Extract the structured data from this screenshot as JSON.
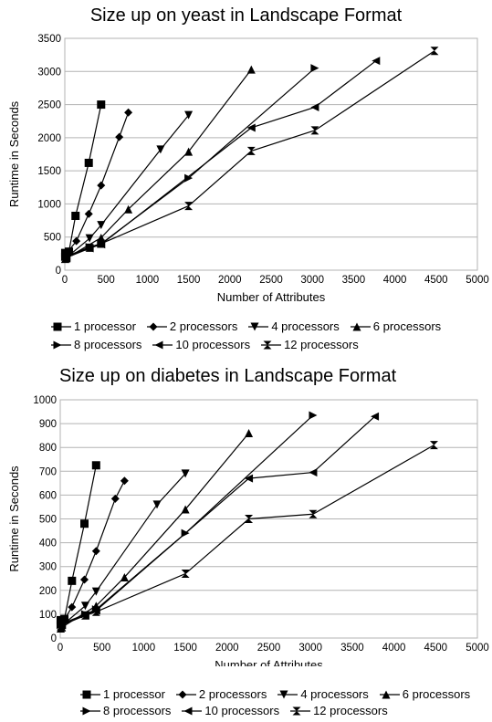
{
  "chart_data": [
    {
      "type": "line",
      "title": "Size up on yeast in Landscape Format",
      "xlabel": "Number of Attributes",
      "ylabel": "Runtime in Seconds",
      "xlim": [
        0,
        5000
      ],
      "ylim": [
        0,
        3500
      ],
      "xticks": [
        0,
        500,
        1000,
        1500,
        2000,
        2500,
        3000,
        3500,
        4000,
        4500,
        5000
      ],
      "yticks": [
        0,
        500,
        1000,
        1500,
        2000,
        2500,
        3000,
        3500
      ],
      "grid": true,
      "legend_position": "bottom",
      "series": [
        {
          "name": "1 processor",
          "marker": "square",
          "x": [
            5,
            50,
            130,
            290,
            440
          ],
          "y": [
            260,
            280,
            820,
            1620,
            2500
          ]
        },
        {
          "name": "2 processors",
          "marker": "diamond",
          "x": [
            5,
            20,
            140,
            290,
            440,
            660,
            770
          ],
          "y": [
            230,
            250,
            440,
            850,
            1280,
            2010,
            2380
          ]
        },
        {
          "name": "4 processors",
          "marker": "triangle-down",
          "x": [
            5,
            30,
            300,
            440,
            1160,
            1500
          ],
          "y": [
            190,
            200,
            480,
            680,
            1820,
            2340
          ]
        },
        {
          "name": "6 processors",
          "marker": "triangle-up",
          "x": [
            5,
            20,
            440,
            770,
            1500,
            2260
          ],
          "y": [
            170,
            180,
            490,
            920,
            1790,
            3030
          ]
        },
        {
          "name": "8 processors",
          "marker": "triangle-right",
          "x": [
            5,
            20,
            300,
            440,
            1500,
            3030
          ],
          "y": [
            200,
            210,
            350,
            400,
            1390,
            3050
          ]
        },
        {
          "name": "10 processors",
          "marker": "triangle-left",
          "x": [
            5,
            20,
            300,
            440,
            2260,
            3030,
            3770
          ],
          "y": [
            180,
            190,
            330,
            390,
            2150,
            2460,
            3160
          ]
        },
        {
          "name": "12 processors",
          "marker": "bowtie",
          "x": [
            5,
            20,
            300,
            440,
            1500,
            2260,
            3030,
            4480
          ],
          "y": [
            180,
            190,
            340,
            400,
            970,
            1800,
            2110,
            3310
          ]
        }
      ]
    },
    {
      "type": "line",
      "title": "Size up on diabetes in Landscape Format",
      "xlabel": "Number of Attributes",
      "ylabel": "Runtime in Seconds",
      "xlim": [
        0,
        5000
      ],
      "ylim": [
        0,
        1000
      ],
      "xticks": [
        0,
        500,
        1000,
        1500,
        2000,
        2500,
        3000,
        3500,
        4000,
        4500,
        5000
      ],
      "yticks": [
        0,
        100,
        200,
        300,
        400,
        500,
        600,
        700,
        800,
        900,
        1000
      ],
      "grid": true,
      "legend_position": "bottom",
      "series": [
        {
          "name": "1 processor",
          "marker": "square",
          "x": [
            5,
            50,
            140,
            290,
            430
          ],
          "y": [
            75,
            80,
            240,
            480,
            725
          ]
        },
        {
          "name": "2 processors",
          "marker": "diamond",
          "x": [
            5,
            20,
            140,
            290,
            430,
            660,
            770
          ],
          "y": [
            55,
            60,
            130,
            245,
            365,
            585,
            660
          ]
        },
        {
          "name": "4 processors",
          "marker": "triangle-down",
          "x": [
            5,
            30,
            300,
            430,
            1160,
            1500
          ],
          "y": [
            50,
            55,
            135,
            195,
            560,
            690
          ]
        },
        {
          "name": "6 processors",
          "marker": "triangle-up",
          "x": [
            5,
            20,
            430,
            770,
            1500,
            2260
          ],
          "y": [
            40,
            45,
            135,
            255,
            540,
            860
          ]
        },
        {
          "name": "8 processors",
          "marker": "triangle-right",
          "x": [
            5,
            20,
            300,
            430,
            1500,
            3030
          ],
          "y": [
            55,
            60,
            100,
            120,
            440,
            935
          ]
        },
        {
          "name": "10 processors",
          "marker": "triangle-left",
          "x": [
            5,
            20,
            300,
            430,
            2260,
            3030,
            3770
          ],
          "y": [
            50,
            55,
            95,
            115,
            670,
            695,
            930
          ]
        },
        {
          "name": "12 processors",
          "marker": "bowtie",
          "x": [
            5,
            20,
            300,
            430,
            1500,
            2260,
            3030,
            4480
          ],
          "y": [
            50,
            55,
            95,
            110,
            270,
            500,
            520,
            810
          ]
        }
      ]
    }
  ]
}
